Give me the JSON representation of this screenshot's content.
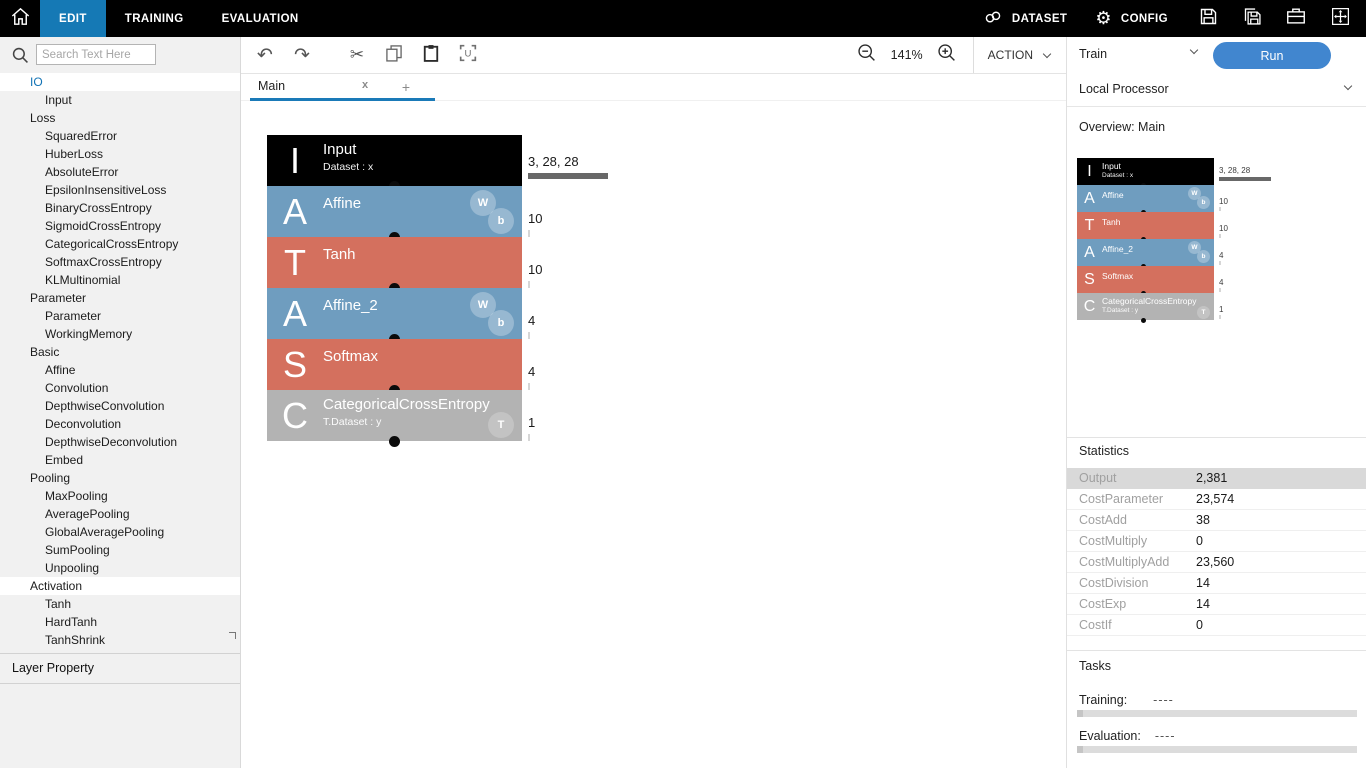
{
  "topbar": {
    "tabs": [
      {
        "label": "EDIT",
        "active": true
      },
      {
        "label": "TRAINING",
        "active": false
      },
      {
        "label": "EVALUATION",
        "active": false
      }
    ],
    "menu_items": [
      {
        "label": "DATASET",
        "icon": "link-icon"
      },
      {
        "label": "CONFIG",
        "icon": "gear-icon"
      }
    ],
    "icon_buttons": [
      "save-icon",
      "save-as-icon",
      "toolbox-icon",
      "fit-window-icon"
    ]
  },
  "toolbar": {
    "icons": [
      "undo-icon",
      "redo-icon",
      "cut-icon",
      "copy-icon",
      "paste-icon",
      "create-unit-icon"
    ],
    "zoom_level": "141%",
    "action_label": "ACTION"
  },
  "runbar": {
    "mode": "Train",
    "run_label": "Run"
  },
  "sidebar": {
    "search_placeholder": "Search Text Here",
    "footer": "Layer Property",
    "tree": [
      {
        "label": "IO",
        "level": 0,
        "selected": true
      },
      {
        "label": "Input",
        "level": 1
      },
      {
        "label": "Loss",
        "level": 0
      },
      {
        "label": "SquaredError",
        "level": 1
      },
      {
        "label": "HuberLoss",
        "level": 1
      },
      {
        "label": "AbsoluteError",
        "level": 1
      },
      {
        "label": "EpsilonInsensitiveLoss",
        "level": 1
      },
      {
        "label": "BinaryCrossEntropy",
        "level": 1
      },
      {
        "label": "SigmoidCrossEntropy",
        "level": 1
      },
      {
        "label": "CategoricalCrossEntropy",
        "level": 1
      },
      {
        "label": "SoftmaxCrossEntropy",
        "level": 1
      },
      {
        "label": "KLMultinomial",
        "level": 1
      },
      {
        "label": "Parameter",
        "level": 0
      },
      {
        "label": "Parameter",
        "level": 1
      },
      {
        "label": "WorkingMemory",
        "level": 1
      },
      {
        "label": "Basic",
        "level": 0
      },
      {
        "label": "Affine",
        "level": 1
      },
      {
        "label": "Convolution",
        "level": 1
      },
      {
        "label": "DepthwiseConvolution",
        "level": 1
      },
      {
        "label": "Deconvolution",
        "level": 1
      },
      {
        "label": "DepthwiseDeconvolution",
        "level": 1
      },
      {
        "label": "Embed",
        "level": 1
      },
      {
        "label": "Pooling",
        "level": 0
      },
      {
        "label": "MaxPooling",
        "level": 1
      },
      {
        "label": "AveragePooling",
        "level": 1
      },
      {
        "label": "GlobalAveragePooling",
        "level": 1
      },
      {
        "label": "SumPooling",
        "level": 1
      },
      {
        "label": "Unpooling",
        "level": 1
      },
      {
        "label": "Activation",
        "level": 0,
        "highlight": true
      },
      {
        "label": "Tanh",
        "level": 1
      },
      {
        "label": "HardTanh",
        "level": 1
      },
      {
        "label": "TanhShrink",
        "level": 1
      }
    ]
  },
  "canvas": {
    "tab_label": "Main",
    "tab_close": "x",
    "new_tab": "+",
    "nodes": [
      {
        "letter": "I",
        "title": "Input",
        "subtitle": "Dataset : x",
        "color": "#000000",
        "output": "3, 28, 28",
        "badges": []
      },
      {
        "letter": "A",
        "title": "Affine",
        "subtitle": "",
        "color": "#6f9dbf",
        "output": "10",
        "badges": [
          "W",
          "b"
        ]
      },
      {
        "letter": "T",
        "title": "Tanh",
        "subtitle": "",
        "color": "#d4705e",
        "output": "10",
        "badges": []
      },
      {
        "letter": "A",
        "title": "Affine_2",
        "subtitle": "",
        "color": "#6f9dbf",
        "output": "4",
        "badges": [
          "W",
          "b"
        ]
      },
      {
        "letter": "S",
        "title": "Softmax",
        "subtitle": "",
        "color": "#d4705e",
        "output": "4",
        "badges": []
      },
      {
        "letter": "C",
        "title": "CategoricalCrossEntropy",
        "subtitle": "T.Dataset : y",
        "color": "#b3b3b3",
        "output": "1",
        "badges": [
          "T"
        ]
      }
    ]
  },
  "rightpanel": {
    "processor": "Local Processor",
    "overview_title": "Overview: Main",
    "statistics_title": "Statistics",
    "statistics": [
      {
        "label": "Output",
        "value": "2,381",
        "highlight": true
      },
      {
        "label": "CostParameter",
        "value": "23,574"
      },
      {
        "label": "CostAdd",
        "value": "38"
      },
      {
        "label": "CostMultiply",
        "value": "0"
      },
      {
        "label": "CostMultiplyAdd",
        "value": "23,560"
      },
      {
        "label": "CostDivision",
        "value": "14"
      },
      {
        "label": "CostExp",
        "value": "14"
      },
      {
        "label": "CostIf",
        "value": "0"
      }
    ],
    "tasks_title": "Tasks",
    "tasks": [
      {
        "label": "Training:",
        "value": "----"
      },
      {
        "label": "Evaluation:",
        "value": "----"
      }
    ]
  },
  "colors": {
    "topbar_bg": "#000000",
    "active_tab": "#1579b5",
    "tab_underline": "#1a7ab8",
    "run_button": "#4186cf",
    "selected_text": "#1273b5",
    "highlight_row": "#d9d9d9"
  }
}
